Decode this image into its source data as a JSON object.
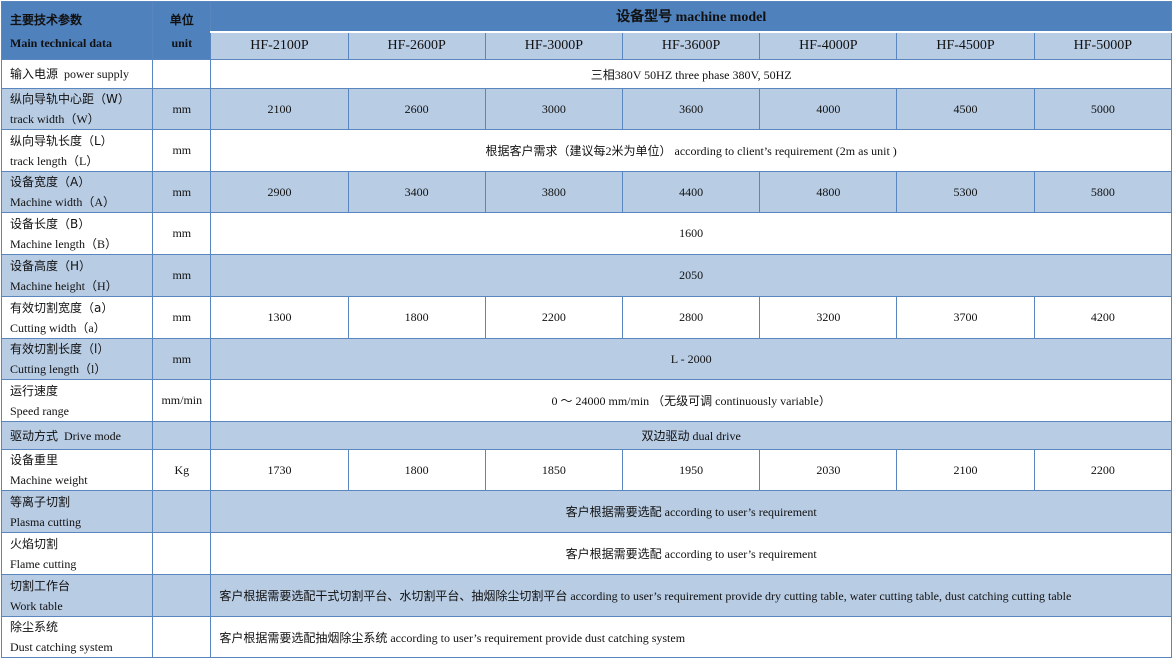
{
  "header": {
    "param_zh": "主要技术参数",
    "param_en": "Main technical data",
    "unit_zh": "单位",
    "unit_en": "unit",
    "model_title": "设备型号  machine model",
    "models": [
      "HF-2100P",
      "HF-2600P",
      "HF-3000P",
      "HF-3600P",
      "HF-4000P",
      "HF-4500P",
      "HF-5000P"
    ]
  },
  "rows": {
    "power": {
      "zh": "输入电源",
      "en": "power supply",
      "unit": "",
      "value": "三相380V 50HZ     three phase 380V, 50HZ"
    },
    "track_width": {
      "zh": "纵向导轨中心距（W）",
      "en": "track width（W）",
      "unit": "mm",
      "values": [
        "2100",
        "2600",
        "3000",
        "3600",
        "4000",
        "4500",
        "5000"
      ]
    },
    "track_length": {
      "zh": "纵向导轨长度（L）",
      "en": "track length（L）",
      "unit": "mm",
      "value": "根据客户需求（建议每2米为单位）  according to client’s requirement (2m as unit )"
    },
    "machine_width": {
      "zh": "设备宽度（A）",
      "en": "Machine width（A）",
      "unit": "mm",
      "values": [
        "2900",
        "3400",
        "3800",
        "4400",
        "4800",
        "5300",
        "5800"
      ]
    },
    "machine_length": {
      "zh": "设备长度（B）",
      "en": "Machine length（B）",
      "unit": "mm",
      "value": "1600"
    },
    "machine_height": {
      "zh": "设备高度（H）",
      "en": "Machine height（H）",
      "unit": "mm",
      "value": "2050"
    },
    "cutting_width": {
      "zh": "有效切割宽度（a）",
      "en": "Cutting width（a）",
      "unit": "mm",
      "values": [
        "1300",
        "1800",
        "2200",
        "2800",
        "3200",
        "3700",
        "4200"
      ]
    },
    "cutting_length": {
      "zh": "有效切割长度（l）",
      "en": "Cutting length（l）",
      "unit": "mm",
      "value": "L - 2000"
    },
    "speed": {
      "zh": "运行速度",
      "en": "Speed range",
      "unit": "mm/min",
      "value": "0 ～ 24000 mm/min  （无级可调  continuously variable）"
    },
    "drive": {
      "zh": "驱动方式",
      "en": "Drive mode",
      "unit": "",
      "value": "双边驱动   dual drive"
    },
    "weight": {
      "zh": "设备重里",
      "en": "Machine weight",
      "unit": "Kg",
      "values": [
        "1730",
        "1800",
        "1850",
        "1950",
        "2030",
        "2100",
        "2200"
      ]
    },
    "plasma": {
      "zh": "等离子切割",
      "en": "Plasma cutting",
      "unit": "",
      "value": "客户根据需要选配  according to user’s requirement"
    },
    "flame": {
      "zh": "火焰切割",
      "en": "Flame cutting",
      "unit": "",
      "value": "客户根据需要选配  according to user’s requirement"
    },
    "work_table": {
      "zh": "切割工作台",
      "en": "Work table",
      "unit": "",
      "value": "客户根据需要选配干式切割平台、水切割平台、抽烟除尘切割平台     according to user’s requirement provide dry cutting table, water cutting table, dust catching cutting table"
    },
    "dust": {
      "zh": "除尘系统",
      "en": "Dust catching system",
      "unit": "",
      "value": "客户根据需要选配抽烟除尘系统     according to user’s requirement provide dust catching system"
    }
  }
}
